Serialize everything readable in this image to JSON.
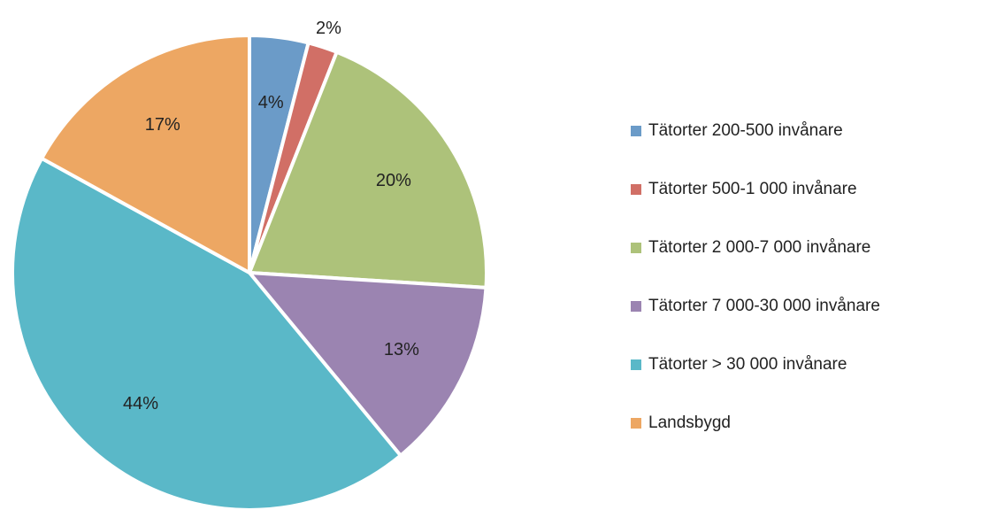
{
  "chart_data": {
    "type": "pie",
    "categories": [
      "Tätorter 200-500 invånare",
      "Tätorter 500-1 000 invånare",
      "Tätorter 2 000-7 000 invånare",
      "Tätorter 7 000-30 000 invånare",
      "Tätorter > 30 000 invånare",
      "Landsbygd"
    ],
    "values": [
      4,
      2,
      20,
      13,
      44,
      17
    ],
    "value_labels": [
      "4%",
      "2%",
      "20%",
      "13%",
      "44%",
      "17%"
    ],
    "colors": [
      "#6b9bc8",
      "#d16f66",
      "#adc27a",
      "#9b84b1",
      "#5ab8c8",
      "#eda763"
    ],
    "legend": "right"
  }
}
